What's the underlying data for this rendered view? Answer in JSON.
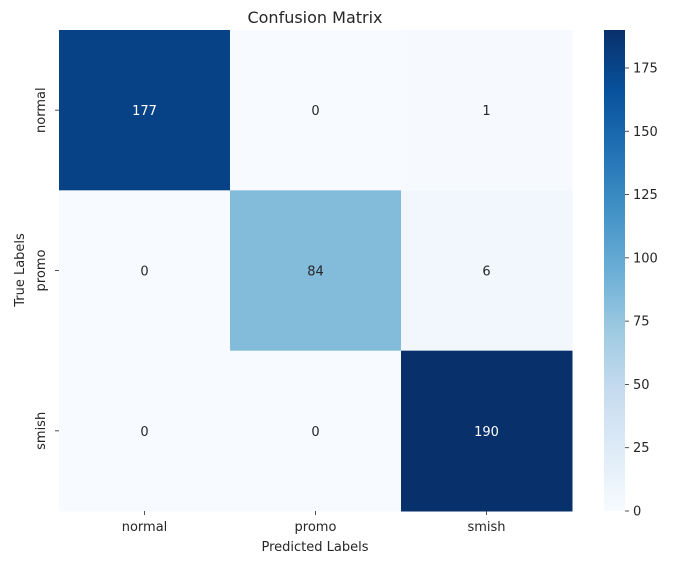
{
  "chart_data": {
    "type": "heatmap",
    "title": "Confusion Matrix",
    "xlabel": "Predicted Labels",
    "ylabel": "True Labels",
    "x_categories": [
      "normal",
      "promo",
      "smish"
    ],
    "y_categories": [
      "normal",
      "promo",
      "smish"
    ],
    "values": [
      [
        177,
        0,
        1
      ],
      [
        0,
        84,
        6
      ],
      [
        0,
        0,
        190
      ]
    ],
    "colormap": "Blues",
    "vmin": 0,
    "vmax": 190,
    "colorbar_ticks": [
      0,
      25,
      50,
      75,
      100,
      125,
      150,
      175
    ],
    "colorbar_tick_labels": [
      "0",
      "25",
      "50",
      "75",
      "100",
      "125",
      "150",
      "175"
    ]
  }
}
